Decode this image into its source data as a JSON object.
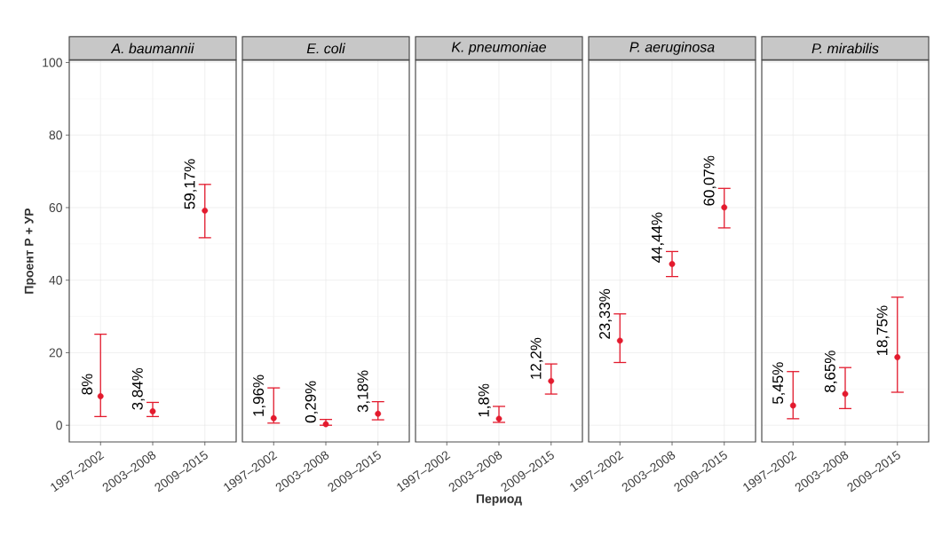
{
  "chart_data": [
    {
      "type": "scatter",
      "title": "A. baumannii",
      "ylabel": "Проент Р + УР",
      "categories": [
        "1997–2002",
        "2003–2008",
        "2009–2015"
      ],
      "values": [
        8,
        3.84,
        59.17
      ],
      "value_labels": [
        "8%",
        "3,84%",
        "59,17%"
      ],
      "errors": [
        [
          2.4,
          25.1
        ],
        [
          2.4,
          6.3
        ],
        [
          51.7,
          66.4
        ]
      ],
      "color": "#e31a2d",
      "ylim": [
        -4.6,
        100.6
      ],
      "yticks": [
        0,
        20,
        40,
        60,
        80,
        100
      ],
      "grid": true
    },
    {
      "type": "scatter",
      "title": "E. coli",
      "categories": [
        "1997–2002",
        "2003–2008",
        "2009–2015"
      ],
      "values": [
        1.96,
        0.29,
        3.18
      ],
      "value_labels": [
        "1,96%",
        "0,29%",
        "3,18%"
      ],
      "errors": [
        [
          0.6,
          10.3
        ],
        [
          0,
          1.6
        ],
        [
          1.5,
          6.5
        ]
      ],
      "color": "#e31a2d",
      "ylim": [
        -4.6,
        100.6
      ],
      "yticks": [
        0,
        20,
        40,
        60,
        80,
        100
      ],
      "grid": true,
      "tick_labels": "x"
    },
    {
      "type": "scatter",
      "title": "K. pneumoniae",
      "xlabel": "Период",
      "categories": [
        "1997–2002",
        "2003–2008",
        "2009–2015"
      ],
      "values": [
        null,
        1.8,
        12.2
      ],
      "value_labels": [
        null,
        "1,8%",
        "12,2%"
      ],
      "errors": [
        null,
        [
          0.8,
          5.2
        ],
        [
          8.6,
          16.9
        ]
      ],
      "color": "#e31a2d",
      "ylim": [
        -4.6,
        100.6
      ],
      "yticks": [
        0,
        20,
        40,
        60,
        80,
        100
      ],
      "grid": true,
      "tick_labels": "x"
    },
    {
      "type": "scatter",
      "title": "P. aeruginosa",
      "categories": [
        "1997–2002",
        "2003–2008",
        "2009–2015"
      ],
      "values": [
        23.33,
        44.44,
        60.07
      ],
      "value_labels": [
        "23,33%",
        "44,44%",
        "60,07%"
      ],
      "errors": [
        [
          17.3,
          30.7
        ],
        [
          41.0,
          47.9
        ],
        [
          54.4,
          65.3
        ]
      ],
      "color": "#e31a2d",
      "ylim": [
        -4.6,
        100.6
      ],
      "yticks": [
        0,
        20,
        40,
        60,
        80,
        100
      ],
      "grid": true,
      "tick_labels": "x"
    },
    {
      "type": "scatter",
      "title": "P. mirabilis",
      "categories": [
        "1997–2002",
        "2003–2008",
        "2009–2015"
      ],
      "values": [
        5.45,
        8.65,
        18.75
      ],
      "value_labels": [
        "5,45%",
        "8,65%",
        "18,75%"
      ],
      "errors": [
        [
          1.8,
          14.8
        ],
        [
          4.6,
          15.9
        ],
        [
          9.1,
          35.3
        ]
      ],
      "color": "#e31a2d",
      "ylim": [
        -4.6,
        100.6
      ],
      "yticks": [
        0,
        20,
        40,
        60,
        80,
        100
      ],
      "grid": true,
      "tick_labels": "x"
    }
  ]
}
